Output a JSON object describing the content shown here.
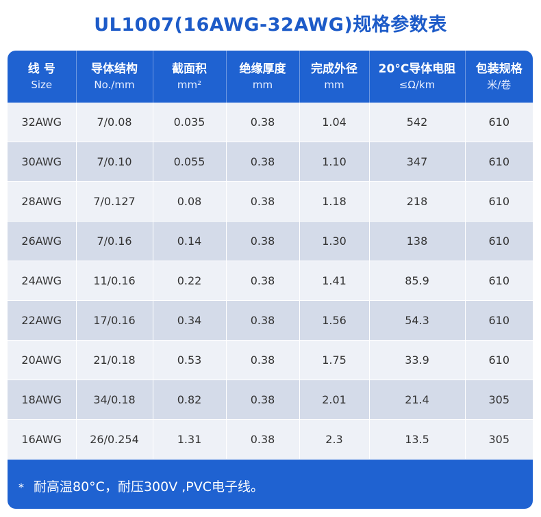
{
  "title": "UL1007(16AWG-32AWG)规格参数表",
  "headers": [
    {
      "zh": "线 号",
      "en": "Size"
    },
    {
      "zh": "导体结构",
      "en": "No./mm"
    },
    {
      "zh": "截面积",
      "en": "mm²"
    },
    {
      "zh": "绝缘厚度",
      "en": "mm"
    },
    {
      "zh": "完成外径",
      "en": "mm"
    },
    {
      "zh": "20°C导体电阻",
      "en": "≤Ω/km"
    },
    {
      "zh": "包装规格",
      "en": "米/卷"
    }
  ],
  "rows": [
    [
      "32AWG",
      "7/0.08",
      "0.035",
      "0.38",
      "1.04",
      "542",
      "610"
    ],
    [
      "30AWG",
      "7/0.10",
      "0.055",
      "0.38",
      "1.10",
      "347",
      "610"
    ],
    [
      "28AWG",
      "7/0.127",
      "0.08",
      "0.38",
      "1.18",
      "218",
      "610"
    ],
    [
      "26AWG",
      "7/0.16",
      "0.14",
      "0.38",
      "1.30",
      "138",
      "610"
    ],
    [
      "24AWG",
      "11/0.16",
      "0.22",
      "0.38",
      "1.41",
      "85.9",
      "610"
    ],
    [
      "22AWG",
      "17/0.16",
      "0.34",
      "0.38",
      "1.56",
      "54.3",
      "610"
    ],
    [
      "20AWG",
      "21/0.18",
      "0.53",
      "0.38",
      "1.75",
      "33.9",
      "610"
    ],
    [
      "18AWG",
      "34/0.18",
      "0.82",
      "0.38",
      "2.01",
      "21.4",
      "305"
    ],
    [
      "16AWG",
      "26/0.254",
      "1.31",
      "0.38",
      "2.3",
      "13.5",
      "305"
    ]
  ],
  "note": {
    "marker": "*",
    "text": "耐高温80°C，耐压300V ,PVC电子线。"
  }
}
